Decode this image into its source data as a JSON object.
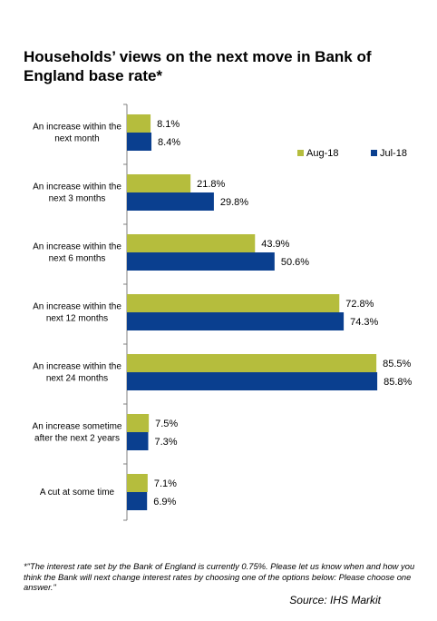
{
  "chart_data": {
    "type": "bar",
    "orientation": "horizontal",
    "title": "Households’ views on the next move in Bank of England base rate*",
    "categories": [
      [
        "An increase within the",
        "next month"
      ],
      [
        "An increase within the",
        "next 3 months"
      ],
      [
        "An increase within the",
        "next 6 months"
      ],
      [
        "An increase within the",
        "next 12 months"
      ],
      [
        "An increase within the",
        "next 24 months"
      ],
      [
        "An increase sometime",
        "after the next 2 years"
      ],
      [
        "A cut at some time"
      ]
    ],
    "series": [
      {
        "name": "Aug-18",
        "color": "#b5bd3d",
        "values": [
          8.1,
          21.8,
          43.9,
          72.8,
          85.5,
          7.5,
          7.1
        ],
        "labels": [
          "8.1%",
          "21.8%",
          "43.9%",
          "72.8%",
          "85.5%",
          "7.5%",
          "7.1%"
        ]
      },
      {
        "name": "Jul-18",
        "color": "#0a3f8f",
        "values": [
          8.4,
          29.8,
          50.6,
          74.3,
          85.8,
          7.3,
          6.9
        ],
        "labels": [
          "8.4%",
          "29.8%",
          "50.6%",
          "74.3%",
          "85.8%",
          "7.3%",
          "6.9%"
        ]
      }
    ],
    "xlim": [
      0,
      100
    ],
    "grid": false,
    "legend_position": "top-right"
  },
  "footnote": "*\"The interest rate set by the Bank of England is currently 0.75%. Please let us know when and how you think the Bank will next change interest rates by choosing one of the options below: Please choose one answer.\"",
  "source": "Source: IHS Markit"
}
